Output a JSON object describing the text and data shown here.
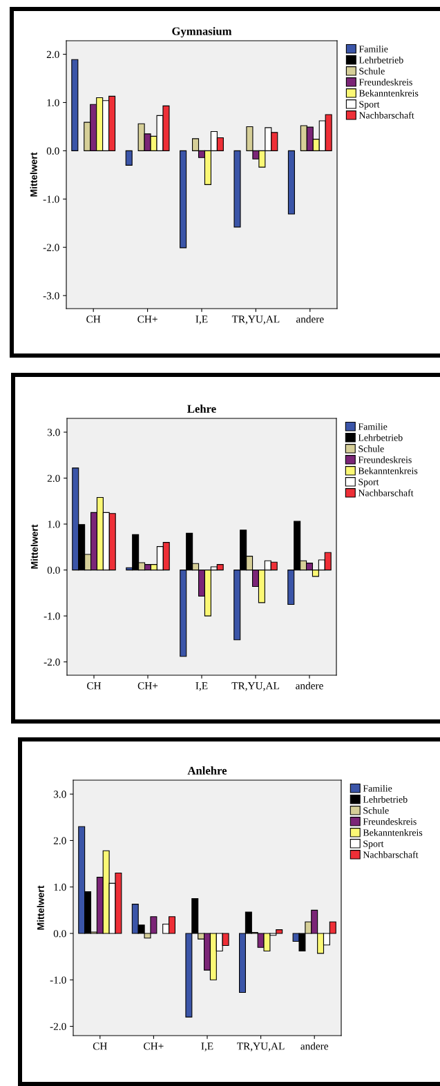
{
  "chart_data": [
    {
      "type": "bar",
      "title": "Gymnasium",
      "ylabel": "Mittelwert",
      "categories": [
        "CH",
        "CH+",
        "I,E",
        "TR,YU,AL",
        "andere"
      ],
      "ylim": [
        -3.27,
        2.28
      ],
      "yticks": [
        {
          "value": -3,
          "label": "-3.0"
        },
        {
          "value": -2,
          "label": "-2.0"
        },
        {
          "value": -1,
          "label": "-1.0"
        },
        {
          "value": 0,
          "label": "0.0"
        },
        {
          "value": 1,
          "label": "1.0"
        },
        {
          "value": 2,
          "label": "2.0"
        }
      ],
      "legend": "top right",
      "grid": false,
      "series": [
        {
          "name": "Familie",
          "color": "#3b55a8",
          "values": [
            1.89,
            -0.3,
            -2.01,
            -1.58,
            -1.31
          ]
        },
        {
          "name": "Lehrbetrieb",
          "color": "#000000",
          "values": [
            null,
            null,
            null,
            null,
            null
          ]
        },
        {
          "name": "Schule",
          "color": "#d6cf98",
          "values": [
            0.59,
            0.56,
            0.25,
            0.5,
            0.52
          ]
        },
        {
          "name": "Freundeskreis",
          "color": "#7b2577",
          "values": [
            0.96,
            0.35,
            -0.14,
            -0.17,
            0.49
          ]
        },
        {
          "name": "Bekanntenkreis",
          "color": "#fbf875",
          "values": [
            1.1,
            0.3,
            -0.7,
            -0.34,
            0.24
          ]
        },
        {
          "name": "Sport",
          "color": "#ffffff",
          "values": [
            1.04,
            0.73,
            0.4,
            0.48,
            0.62
          ]
        },
        {
          "name": "Nachbarschaft",
          "color": "#ee2f37",
          "values": [
            1.13,
            0.93,
            0.27,
            0.38,
            0.75
          ]
        }
      ]
    },
    {
      "type": "bar",
      "title": "Lehre",
      "ylabel": "Mittelwert",
      "categories": [
        "CH",
        "CH+",
        "I,E",
        "TR,YU,AL",
        "andere"
      ],
      "ylim": [
        -2.29,
        3.3
      ],
      "yticks": [
        {
          "value": -2,
          "label": "-2.0"
        },
        {
          "value": -1,
          "label": "-1.0"
        },
        {
          "value": 0,
          "label": "0.0"
        },
        {
          "value": 1,
          "label": "1.0"
        },
        {
          "value": 2,
          "label": "2.0"
        },
        {
          "value": 3,
          "label": "3.0"
        }
      ],
      "legend": "top right",
      "grid": false,
      "series": [
        {
          "name": "Familie",
          "color": "#3b55a8",
          "values": [
            2.22,
            0.05,
            -1.88,
            -1.52,
            -0.75
          ]
        },
        {
          "name": "Lehrbetrieb",
          "color": "#000000",
          "values": [
            0.99,
            0.77,
            0.8,
            0.87,
            1.06
          ]
        },
        {
          "name": "Schule",
          "color": "#d6cf98",
          "values": [
            0.34,
            0.16,
            0.14,
            0.3,
            0.2
          ]
        },
        {
          "name": "Freundeskreis",
          "color": "#7b2577",
          "values": [
            1.25,
            0.12,
            -0.57,
            -0.36,
            0.15
          ]
        },
        {
          "name": "Bekanntenkreis",
          "color": "#fbf875",
          "values": [
            1.58,
            0.12,
            -1.0,
            -0.71,
            -0.14
          ]
        },
        {
          "name": "Sport",
          "color": "#ffffff",
          "values": [
            1.25,
            0.51,
            0.07,
            0.2,
            0.22
          ]
        },
        {
          "name": "Nachbarschaft",
          "color": "#ee2f37",
          "values": [
            1.23,
            0.6,
            0.12,
            0.17,
            0.38
          ]
        }
      ]
    },
    {
      "type": "bar",
      "title": "Anlehre",
      "ylabel": "Mittelwert",
      "categories": [
        "CH",
        "CH+",
        "I,E",
        "TR,YU,AL",
        "andere"
      ],
      "ylim": [
        -2.2,
        3.3
      ],
      "yticks": [
        {
          "value": -2,
          "label": "-2.0"
        },
        {
          "value": -1,
          "label": "-1.0"
        },
        {
          "value": 0,
          "label": "0.0"
        },
        {
          "value": 1,
          "label": "1.0"
        },
        {
          "value": 2,
          "label": "2.0"
        },
        {
          "value": 3,
          "label": "3.0"
        }
      ],
      "legend": "top right",
      "grid": false,
      "series": [
        {
          "name": "Familie",
          "color": "#3b55a8",
          "values": [
            2.3,
            0.63,
            -1.8,
            -1.27,
            -0.17
          ]
        },
        {
          "name": "Lehrbetrieb",
          "color": "#000000",
          "values": [
            0.9,
            0.18,
            0.75,
            0.46,
            -0.38
          ]
        },
        {
          "name": "Schule",
          "color": "#d6cf98",
          "values": [
            0.03,
            -0.1,
            -0.12,
            0.02,
            0.25
          ]
        },
        {
          "name": "Freundeskreis",
          "color": "#7b2577",
          "values": [
            1.21,
            0.36,
            -0.79,
            -0.3,
            0.5
          ]
        },
        {
          "name": "Bekanntenkreis",
          "color": "#fbf875",
          "values": [
            1.78,
            null,
            -1.0,
            -0.38,
            -0.43
          ]
        },
        {
          "name": "Sport",
          "color": "#ffffff",
          "values": [
            1.08,
            0.2,
            -0.38,
            -0.04,
            -0.25
          ]
        },
        {
          "name": "Nachbarschaft",
          "color": "#ee2f37",
          "values": [
            1.3,
            0.36,
            -0.26,
            0.08,
            0.25
          ]
        }
      ]
    }
  ]
}
